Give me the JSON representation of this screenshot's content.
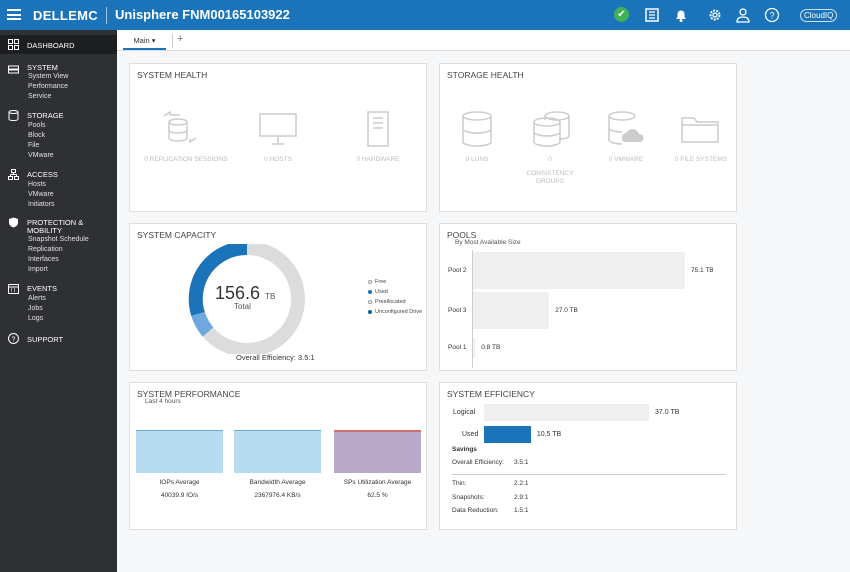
{
  "header": {
    "logo": "DELLEMC",
    "title": "Unisphere FNM00165103922",
    "cloud_label": "CloudIQ"
  },
  "sidebar": {
    "dashboard": "DASHBOARD",
    "system": {
      "label": "SYSTEM",
      "items": [
        "System View",
        "Performance",
        "Service"
      ]
    },
    "storage": {
      "label": "STORAGE",
      "items": [
        "Pools",
        "Block",
        "File",
        "VMware"
      ]
    },
    "access": {
      "label": "ACCESS",
      "items": [
        "Hosts",
        "VMware",
        "Initiators"
      ]
    },
    "protection": {
      "label1": "PROTECTION &",
      "label2": "MOBILITY",
      "items": [
        "Snapshot Schedule",
        "Replication",
        "Interfaces",
        "Import"
      ]
    },
    "events": {
      "label": "EVENTS",
      "items": [
        "Alerts",
        "Jobs",
        "Logs"
      ]
    },
    "support": "SUPPORT"
  },
  "tabs": {
    "main": "Main ▾",
    "add": "+"
  },
  "system_health": {
    "title": "SYSTEM HEALTH",
    "items": [
      "0  REPLICATION SESSIONS",
      "0  HOSTS",
      "0  HARDWARE"
    ]
  },
  "storage_health": {
    "title": "STORAGE HEALTH",
    "items": [
      "0  LUNS",
      "0",
      "CONSISTENCY",
      "GROUPS",
      "0  VMWARE",
      "0  FILE SYSTEMS"
    ]
  },
  "system_capacity": {
    "title": "SYSTEM CAPACITY",
    "value": "156.6",
    "unit": "TB",
    "total_label": "Total",
    "efficiency": "Overall Efficiency: 3.5:1",
    "legend": [
      "Free",
      "Used",
      "Preallocated",
      "Unconfigured Drive"
    ],
    "colors": {
      "free": "#dcdcdc",
      "used": "#1b74b9",
      "preallocated": "#6fa8dc",
      "unconfigured": "#0e5f9c"
    }
  },
  "pools": {
    "title": "POOLS",
    "subtitle": "By Most Available Size",
    "items": [
      {
        "name": "Pool 2",
        "value": 75.1,
        "label": "75.1 TB"
      },
      {
        "name": "Pool 3",
        "value": 27.0,
        "label": "27.0 TB"
      },
      {
        "name": "Pool 1",
        "value": 0.8,
        "label": "0.8 TB"
      }
    ]
  },
  "system_performance": {
    "title": "SYSTEM PERFORMANCE",
    "subtitle": "Last 4 hours",
    "charts": [
      {
        "label": "IOPs Average",
        "value": "40039.9 IO/s"
      },
      {
        "label": "Bandwidth Average",
        "value": "2367976.4 KB/s"
      },
      {
        "label": "SPs Utilization Average",
        "value": "62.5 %"
      }
    ]
  },
  "system_efficiency": {
    "title": "SYSTEM EFFICIENCY",
    "logical": {
      "label": "Logical",
      "value": 37.0,
      "text": "37.0 TB"
    },
    "used": {
      "label": "Used",
      "value": 10.5,
      "text": "10.5 TB"
    },
    "savings": "Savings",
    "overall": {
      "label": "Overall Efficiency:",
      "value": "3.5:1"
    },
    "thin": {
      "label": "Thin:",
      "value": "2.2:1"
    },
    "snapshots": {
      "label": "Snapshots:",
      "value": "2.9:1"
    },
    "reduction": {
      "label": "Data Reduction:",
      "value": "1.5:1"
    }
  }
}
